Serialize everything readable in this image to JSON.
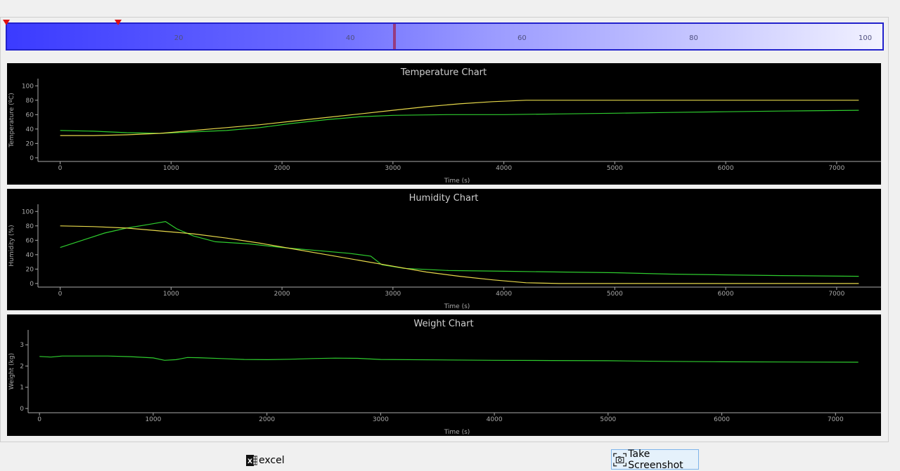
{
  "timeline": {
    "ticks": [
      "20",
      "40",
      "60",
      "80",
      "100"
    ],
    "tick_values": [
      20,
      40,
      60,
      80,
      100
    ],
    "range": [
      0,
      102
    ],
    "cursor_value": 45,
    "markers": [
      0,
      13
    ]
  },
  "buttons": {
    "excel_label": "excel",
    "screenshot_label": "Take Screenshot"
  },
  "colors": {
    "series_green": "#2ecc2e",
    "series_yellow": "#e6d84a",
    "axis": "#aaaaaa"
  },
  "chart_data": [
    {
      "type": "line",
      "title": "Temperature Chart",
      "xlabel": "Time (s)",
      "ylabel": "Temperature (ºC)",
      "xlim": [
        -200,
        7400
      ],
      "ylim": [
        -5,
        110
      ],
      "xticks": [
        0,
        1000,
        2000,
        3000,
        4000,
        5000,
        6000,
        7000
      ],
      "yticks": [
        0,
        20,
        40,
        60,
        80,
        100
      ],
      "series": [
        {
          "color": "#2ecc2e",
          "x": [
            0,
            300,
            600,
            900,
            1200,
            1500,
            1800,
            2100,
            2400,
            2700,
            3000,
            3500,
            4000,
            4500,
            5000,
            5500,
            6000,
            6500,
            7200
          ],
          "y": [
            38,
            37,
            35,
            34,
            36,
            38,
            42,
            48,
            53,
            57,
            59,
            60,
            60,
            61,
            62,
            63,
            64,
            65,
            66
          ]
        },
        {
          "color": "#e6d84a",
          "x": [
            0,
            300,
            600,
            900,
            1200,
            1500,
            1800,
            2100,
            2400,
            2700,
            3000,
            3300,
            3600,
            3900,
            4200,
            4500,
            5000,
            5500,
            6000,
            6500,
            7200
          ],
          "y": [
            31,
            31,
            32,
            34,
            38,
            42,
            46,
            51,
            56,
            61,
            66,
            71,
            75,
            78,
            80,
            80,
            80,
            80,
            80,
            80,
            80
          ]
        }
      ]
    },
    {
      "type": "line",
      "title": "Humidity Chart",
      "xlabel": "Time (s)",
      "ylabel": "Humidity (%)",
      "xlim": [
        -200,
        7400
      ],
      "ylim": [
        -5,
        110
      ],
      "xticks": [
        0,
        1000,
        2000,
        3000,
        4000,
        5000,
        6000,
        7000
      ],
      "yticks": [
        0,
        20,
        40,
        60,
        80,
        100
      ],
      "series": [
        {
          "color": "#2ecc2e",
          "x": [
            0,
            200,
            400,
            600,
            800,
            950,
            1050,
            1200,
            1400,
            1700,
            2000,
            2300,
            2600,
            2800,
            2900,
            3100,
            3500,
            4000,
            4500,
            5000,
            5500,
            6000,
            6500,
            7200
          ],
          "y": [
            50,
            60,
            70,
            77,
            82,
            86,
            76,
            66,
            58,
            55,
            50,
            46,
            42,
            38,
            26,
            21,
            18,
            17,
            16,
            15,
            13,
            12,
            11,
            10
          ]
        },
        {
          "color": "#e6d84a",
          "x": [
            0,
            300,
            600,
            900,
            1200,
            1500,
            1800,
            2100,
            2400,
            2700,
            3000,
            3300,
            3600,
            3900,
            4200,
            4500,
            5000,
            5500,
            6000,
            6500,
            7200
          ],
          "y": [
            80,
            79,
            77,
            73,
            69,
            63,
            56,
            48,
            40,
            32,
            24,
            16,
            10,
            5,
            1,
            0,
            0,
            0,
            0,
            0,
            0
          ]
        }
      ]
    },
    {
      "type": "line",
      "title": "Weight Chart",
      "xlabel": "Time (s)",
      "ylabel": "Weight (kg)",
      "xlim": [
        -100,
        7400
      ],
      "ylim": [
        -0.2,
        3.7
      ],
      "xticks": [
        0,
        1000,
        2000,
        3000,
        4000,
        5000,
        6000,
        7000
      ],
      "yticks": [
        0,
        1,
        2,
        3
      ],
      "series": [
        {
          "color": "#2ecc2e",
          "x": [
            0,
            100,
            200,
            400,
            600,
            800,
            1000,
            1100,
            1200,
            1300,
            1400,
            1600,
            1800,
            2000,
            2200,
            2400,
            2600,
            2800,
            3000,
            3500,
            4000,
            4500,
            5000,
            5500,
            6000,
            6500,
            7200
          ],
          "y": [
            2.45,
            2.42,
            2.47,
            2.47,
            2.47,
            2.44,
            2.38,
            2.27,
            2.3,
            2.4,
            2.39,
            2.35,
            2.31,
            2.3,
            2.32,
            2.35,
            2.37,
            2.36,
            2.31,
            2.29,
            2.27,
            2.26,
            2.25,
            2.22,
            2.2,
            2.19,
            2.18
          ]
        }
      ]
    }
  ]
}
